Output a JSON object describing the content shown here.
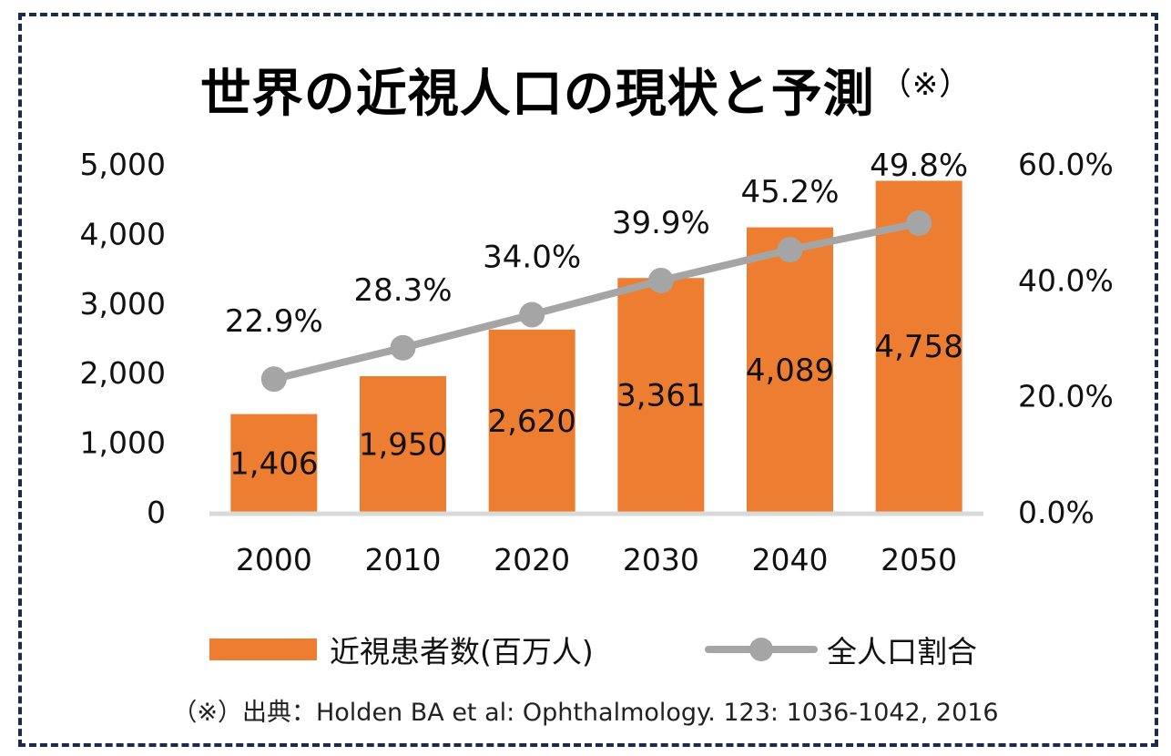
{
  "title": "世界の近視人口の現状と予測",
  "title_mark": "（※）",
  "source_note": "（※）出典：Holden BA et al: Ophthalmology. 123: 1036-1042, 2016",
  "colors": {
    "bar": "#ed7d31",
    "line": "#a5a5a5",
    "axis": "#d9d9d9",
    "border": "#1c2b4a"
  },
  "chart_data": {
    "type": "bar+line",
    "title": "世界の近視人口の現状と予測（※）",
    "categories": [
      "2000",
      "2010",
      "2020",
      "2030",
      "2040",
      "2050"
    ],
    "series": [
      {
        "name": "近視患者数(百万人)",
        "type": "bar",
        "axis": "left",
        "values": [
          1406,
          1950,
          2620,
          3361,
          4089,
          4758
        ],
        "labels": [
          "1,406",
          "1,950",
          "2,620",
          "3,361",
          "4,089",
          "4,758"
        ]
      },
      {
        "name": "全人口割合",
        "type": "line",
        "axis": "right",
        "values": [
          22.9,
          28.3,
          34.0,
          39.9,
          45.2,
          49.8
        ],
        "labels": [
          "22.9%",
          "28.3%",
          "34.0%",
          "39.9%",
          "45.2%",
          "49.8%"
        ]
      }
    ],
    "y_left": {
      "range": [
        0,
        5000
      ],
      "ticks": [
        0,
        1000,
        2000,
        3000,
        4000,
        5000
      ],
      "tick_labels": [
        "0",
        "1,000",
        "2,000",
        "3,000",
        "4,000",
        "5,000"
      ]
    },
    "y_right": {
      "range": [
        0,
        60
      ],
      "ticks": [
        0,
        20,
        40,
        60
      ],
      "tick_labels": [
        "0.0%",
        "20.0%",
        "40.0%",
        "60.0%"
      ]
    },
    "xlabel": "",
    "ylabel": "",
    "grid": false,
    "legend": "bottom"
  }
}
